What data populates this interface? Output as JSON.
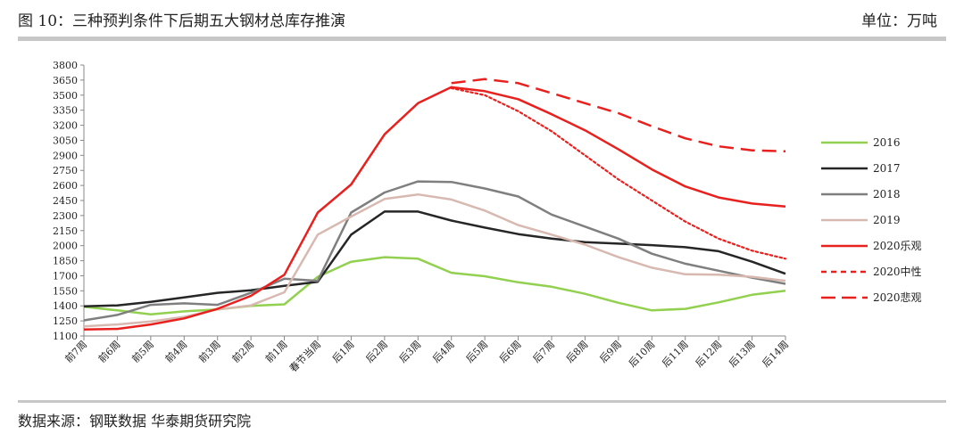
{
  "header": {
    "title": "图 10：三种预判条件下后期五大钢材总库存推演",
    "unit": "单位：万吨"
  },
  "footer": {
    "source": "数据来源：钢联数据 华泰期货研究院"
  },
  "chart_data": {
    "type": "line",
    "title": "",
    "xlabel": "",
    "ylabel": "",
    "ylim": [
      1100,
      3800
    ],
    "yticks": [
      1100,
      1250,
      1400,
      1550,
      1700,
      1850,
      2000,
      2150,
      2300,
      2450,
      2600,
      2750,
      2900,
      3050,
      3200,
      3350,
      3500,
      3650,
      3800
    ],
    "grid": false,
    "legend_position": "right",
    "categories": [
      "前7周",
      "前6周",
      "前5周",
      "前4周",
      "前3周",
      "前2周",
      "前1周",
      "春节当周",
      "后1周",
      "后2周",
      "后3周",
      "后4周",
      "后5周",
      "后6周",
      "后7周",
      "后8周",
      "后9周",
      "后10周",
      "后11周",
      "后12周",
      "后13周",
      "后14周"
    ],
    "series": [
      {
        "name": "2016",
        "color": "#92d050",
        "style": "solid",
        "values": [
          1390,
          1355,
          1315,
          1345,
          1365,
          1400,
          1415,
          1690,
          1840,
          1885,
          1870,
          1730,
          1695,
          1635,
          1590,
          1520,
          1430,
          1355,
          1370,
          1435,
          1510,
          1550
        ]
      },
      {
        "name": "2017",
        "color": "#262626",
        "style": "solid",
        "values": [
          1395,
          1405,
          1440,
          1485,
          1530,
          1555,
          1600,
          1640,
          2110,
          2340,
          2340,
          2250,
          2180,
          2115,
          2070,
          2035,
          2020,
          2005,
          1985,
          1945,
          1840,
          1720
        ]
      },
      {
        "name": "2018",
        "color": "#7f7f7f",
        "style": "solid",
        "values": [
          1255,
          1310,
          1410,
          1425,
          1410,
          1530,
          1670,
          1650,
          2330,
          2530,
          2640,
          2635,
          2570,
          2490,
          2310,
          2190,
          2070,
          1920,
          1820,
          1750,
          1680,
          1620
        ]
      },
      {
        "name": "2019",
        "color": "#d8b9b1",
        "style": "solid",
        "values": [
          1195,
          1215,
          1245,
          1290,
          1365,
          1405,
          1535,
          2110,
          2290,
          2465,
          2510,
          2460,
          2350,
          2205,
          2110,
          2010,
          1885,
          1780,
          1715,
          1710,
          1690,
          1650
        ]
      },
      {
        "name": "2020乐观",
        "color": "#e8211e",
        "style": "solid",
        "values": [
          1165,
          1170,
          1215,
          1275,
          1370,
          1500,
          1710,
          2330,
          2610,
          3110,
          3420,
          3580,
          3540,
          3460,
          3310,
          3150,
          2960,
          2760,
          2590,
          2480,
          2420,
          2390
        ]
      },
      {
        "name": "2020中性",
        "color": "#e8211e",
        "style": "dotted",
        "values": [
          null,
          null,
          null,
          null,
          null,
          null,
          null,
          null,
          null,
          null,
          null,
          3570,
          3500,
          3340,
          3140,
          2900,
          2660,
          2450,
          2240,
          2070,
          1950,
          1870
        ]
      },
      {
        "name": "2020悲观",
        "color": "#e8211e",
        "style": "dashed",
        "values": [
          null,
          null,
          null,
          null,
          null,
          null,
          null,
          null,
          null,
          null,
          null,
          3620,
          3660,
          3620,
          3520,
          3420,
          3320,
          3190,
          3070,
          2990,
          2950,
          2940
        ]
      }
    ]
  }
}
